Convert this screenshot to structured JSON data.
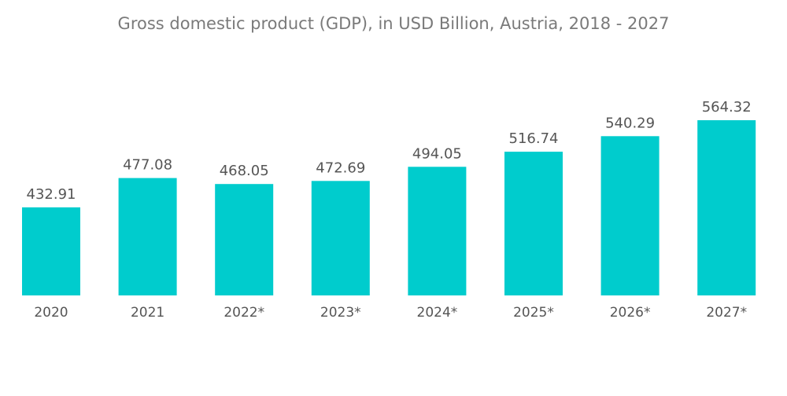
{
  "chart_data": {
    "type": "bar",
    "title": "Gross domestic product (GDP),  in USD Billion, Austria, 2018 - 2027",
    "categories": [
      "2020",
      "2021",
      "2022*",
      "2023*",
      "2024*",
      "2025*",
      "2026*",
      "2027*"
    ],
    "values": [
      432.91,
      477.08,
      468.05,
      472.69,
      494.05,
      516.74,
      540.29,
      564.32
    ],
    "value_labels": [
      "432.91",
      "477.08",
      "468.05",
      "472.69",
      "494.05",
      "516.74",
      "540.29",
      "564.32"
    ],
    "xlabel": "",
    "ylabel": "",
    "ylim": [
      0,
      564.32
    ],
    "grid": false,
    "legend": "none",
    "bar_color": "#00cccd"
  }
}
